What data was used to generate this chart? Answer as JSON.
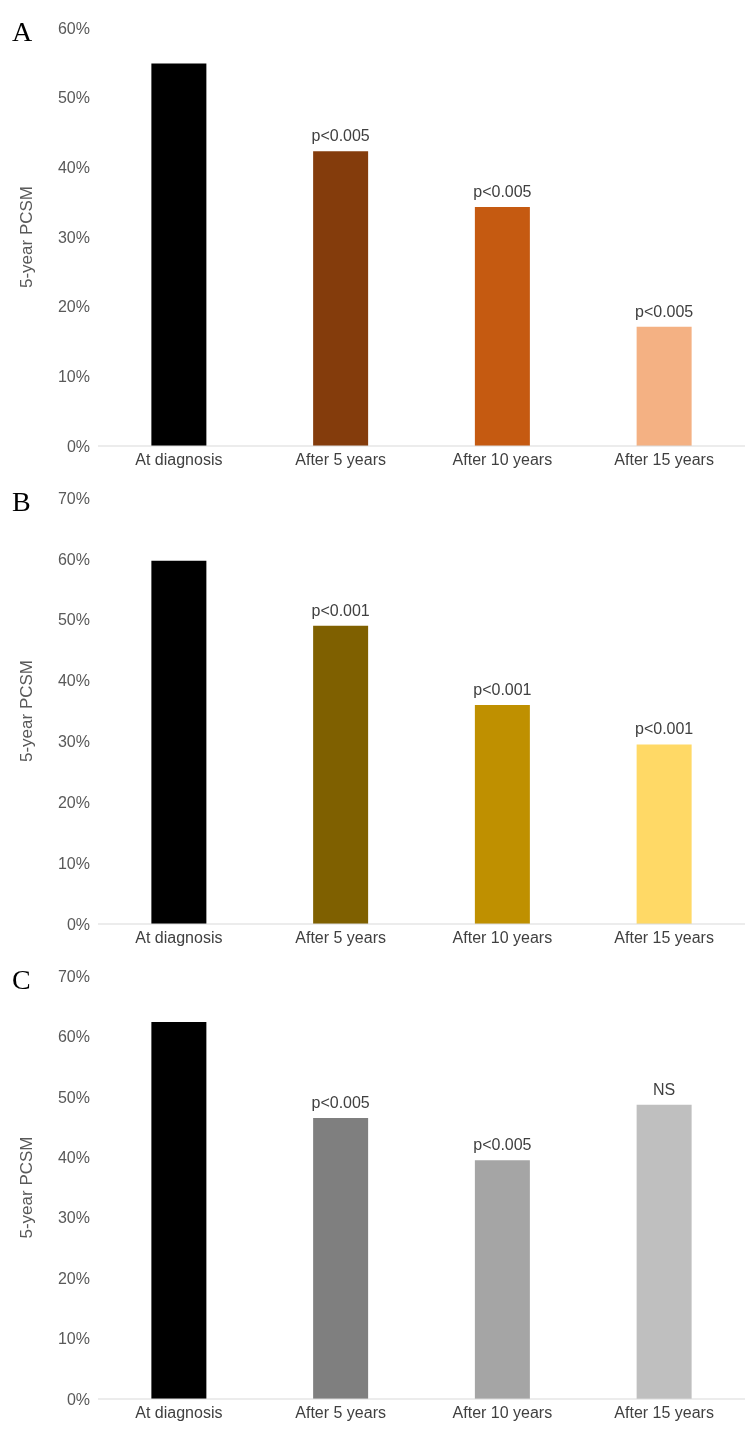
{
  "chart_data": [
    {
      "type": "bar",
      "title": "A",
      "ylabel": "5-year PCSM",
      "categories": [
        "At diagnosis",
        "After 5 years",
        "After 10 years",
        "After 15 years"
      ],
      "values": [
        54.9,
        42.3,
        34.3,
        17.1
      ],
      "colors": [
        "#000000",
        "#843c0c",
        "#c55a11",
        "#f4b183"
      ],
      "value_labels": [
        null,
        "p<0.005",
        "p<0.005",
        "p<0.005"
      ],
      "ylim": [
        0,
        60
      ],
      "yticks": [
        {
          "value": 0,
          "label": "0%"
        },
        {
          "value": 10,
          "label": "10%"
        },
        {
          "value": 20,
          "label": "20%"
        },
        {
          "value": 30,
          "label": "30%"
        },
        {
          "value": 40,
          "label": "40%"
        },
        {
          "value": 50,
          "label": "50%"
        },
        {
          "value": 60,
          "label": "60%"
        }
      ]
    },
    {
      "type": "bar",
      "title": "B",
      "ylabel": "5-year PCSM",
      "categories": [
        "At diagnosis",
        "After 5 years",
        "After 10 years",
        "After 15 years"
      ],
      "values": [
        59.7,
        49.0,
        36.0,
        29.5
      ],
      "colors": [
        "#000000",
        "#7f6000",
        "#bf9000",
        "#ffd966"
      ],
      "value_labels": [
        null,
        "p<0.001",
        "p<0.001",
        "p<0.001"
      ],
      "ylim": [
        0,
        70
      ],
      "yticks": [
        {
          "value": 0,
          "label": "0%"
        },
        {
          "value": 10,
          "label": "10%"
        },
        {
          "value": 20,
          "label": "20%"
        },
        {
          "value": 30,
          "label": "30%"
        },
        {
          "value": 40,
          "label": "40%"
        },
        {
          "value": 50,
          "label": "50%"
        },
        {
          "value": 60,
          "label": "60%"
        },
        {
          "value": 70,
          "label": "70%"
        }
      ]
    },
    {
      "type": "bar",
      "title": "C",
      "ylabel": "5-year PCSM",
      "categories": [
        "At diagnosis",
        "After 5 years",
        "After 10 years",
        "After 15 years"
      ],
      "values": [
        62.4,
        46.5,
        39.5,
        48.7
      ],
      "colors": [
        "#000000",
        "#7f7f7f",
        "#a5a5a5",
        "#bfbfbf"
      ],
      "value_labels": [
        null,
        "p<0.005",
        "p<0.005",
        "NS"
      ],
      "ylim": [
        0,
        70
      ],
      "yticks": [
        {
          "value": 0,
          "label": "0%"
        },
        {
          "value": 10,
          "label": "10%"
        },
        {
          "value": 20,
          "label": "20%"
        },
        {
          "value": 30,
          "label": "30%"
        },
        {
          "value": 40,
          "label": "40%"
        },
        {
          "value": 50,
          "label": "50%"
        },
        {
          "value": 60,
          "label": "60%"
        },
        {
          "value": 70,
          "label": "70%"
        }
      ]
    }
  ]
}
